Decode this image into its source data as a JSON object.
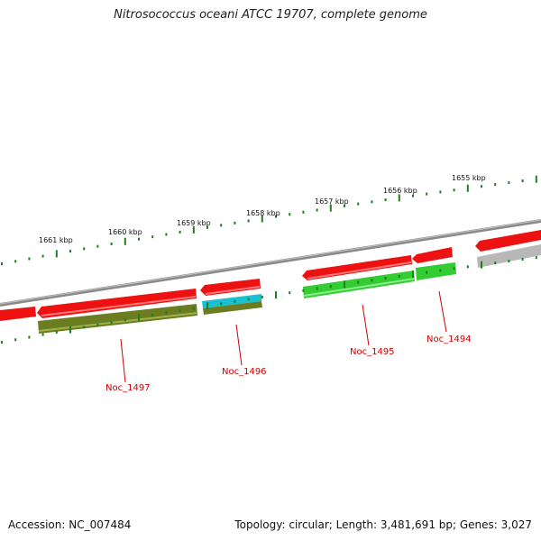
{
  "title": "Nitrosococcus oceani ATCC 19707, complete genome",
  "footer": {
    "accession": "Accession: NC_007484",
    "stats": "Topology: circular; Length: 3,481,691 bp; Genes: 3,027"
  },
  "scale_labels": [
    "1661 kbp",
    "1660 kbp",
    "1659 kbp",
    "1658 kbp",
    "1657 kbp",
    "1656 kbp",
    "1655 kbp"
  ],
  "gene_labels": [
    "Noc_1497",
    "Noc_1496",
    "Noc_1495",
    "Noc_1494"
  ],
  "colors": {
    "backbone": "#8a8a8a",
    "gene_forward": "#ee1111",
    "tick": "#1e7d1e",
    "label": "#cc0000",
    "cog_olive": "#6b7d20",
    "cog_cyan": "#18c0d0",
    "cog_green": "#33cc33",
    "cog_grey": "#b8b8b8"
  }
}
